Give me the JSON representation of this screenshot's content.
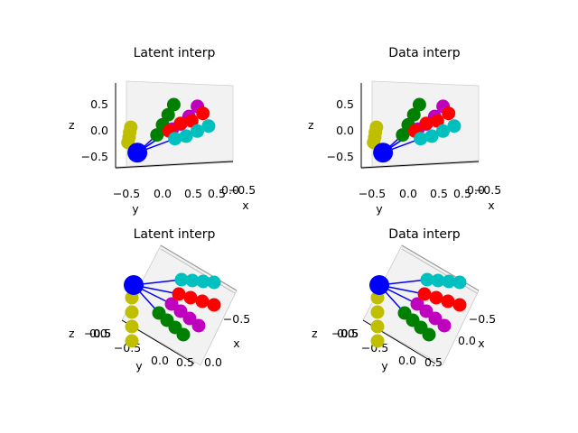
{
  "chart_data": [
    {
      "type": "scatter3d",
      "title": "Latent interp",
      "view": "side",
      "ticks": {
        "z": [
          "0.5",
          "0.0",
          "−0.5"
        ],
        "y": [
          "−0.5",
          "0.0",
          "0.5"
        ],
        "x": [
          "0.5",
          "0.0",
          "−0.5"
        ]
      },
      "axis_labels": {
        "x": "x",
        "y": "y",
        "z": "z"
      },
      "series": [
        {
          "color": "#bfbf00",
          "points": [
            [
              -0.9,
              -0.35,
              0.1
            ],
            [
              -0.9,
              -0.37,
              0.0
            ],
            [
              -0.9,
              -0.38,
              -0.1
            ],
            [
              -0.9,
              -0.4,
              -0.2
            ]
          ]
        },
        {
          "color": "#008000",
          "points": [
            [
              0.0,
              -0.1,
              -0.1
            ],
            [
              0.0,
              0.0,
              0.1
            ],
            [
              0.0,
              0.1,
              0.3
            ],
            [
              0.0,
              0.2,
              0.5
            ]
          ]
        },
        {
          "color": "#bf00bf",
          "points": [
            [
              0.3,
              0.1,
              0.0
            ],
            [
              0.3,
              0.25,
              0.1
            ],
            [
              0.3,
              0.4,
              0.25
            ],
            [
              0.3,
              0.55,
              0.45
            ]
          ]
        },
        {
          "color": "#ff0000",
          "points": [
            [
              0.5,
              0.0,
              -0.05
            ],
            [
              0.5,
              0.2,
              0.1
            ],
            [
              0.5,
              0.4,
              0.15
            ],
            [
              0.5,
              0.6,
              0.3
            ]
          ]
        },
        {
          "color": "#00bfbf",
          "points": [
            [
              0.5,
              0.1,
              -0.2
            ],
            [
              0.5,
              0.3,
              -0.15
            ],
            [
              0.5,
              0.5,
              -0.05
            ],
            [
              0.5,
              0.7,
              0.05
            ]
          ]
        },
        {
          "color": "#0000ff",
          "points": [
            [
              0.0,
              -0.45,
              -0.45
            ]
          ]
        }
      ]
    },
    {
      "type": "scatter3d",
      "title": "Data interp",
      "view": "side",
      "ticks": {
        "z": [
          "0.5",
          "0.0",
          "−0.5"
        ],
        "y": [
          "−0.5",
          "0.0",
          "0.5"
        ],
        "x": [
          "0.5",
          "0.0",
          "−0.5"
        ]
      },
      "axis_labels": {
        "x": "x",
        "y": "y",
        "z": "z"
      },
      "series": [
        {
          "color": "#bfbf00",
          "points": [
            [
              -0.9,
              -0.35,
              0.1
            ],
            [
              -0.9,
              -0.37,
              0.0
            ],
            [
              -0.9,
              -0.38,
              -0.1
            ],
            [
              -0.9,
              -0.4,
              -0.2
            ]
          ]
        },
        {
          "color": "#008000",
          "points": [
            [
              0.0,
              -0.1,
              -0.1
            ],
            [
              0.0,
              0.0,
              0.1
            ],
            [
              0.0,
              0.1,
              0.3
            ],
            [
              0.0,
              0.2,
              0.5
            ]
          ]
        },
        {
          "color": "#bf00bf",
          "points": [
            [
              0.3,
              0.1,
              0.0
            ],
            [
              0.3,
              0.25,
              0.1
            ],
            [
              0.3,
              0.4,
              0.25
            ],
            [
              0.3,
              0.55,
              0.45
            ]
          ]
        },
        {
          "color": "#ff0000",
          "points": [
            [
              0.5,
              0.0,
              -0.05
            ],
            [
              0.5,
              0.2,
              0.1
            ],
            [
              0.5,
              0.4,
              0.15
            ],
            [
              0.5,
              0.6,
              0.3
            ]
          ]
        },
        {
          "color": "#00bfbf",
          "points": [
            [
              0.5,
              0.1,
              -0.2
            ],
            [
              0.5,
              0.3,
              -0.15
            ],
            [
              0.5,
              0.5,
              -0.05
            ],
            [
              0.5,
              0.7,
              0.05
            ]
          ]
        },
        {
          "color": "#0000ff",
          "points": [
            [
              0.0,
              -0.45,
              -0.45
            ]
          ]
        }
      ]
    },
    {
      "type": "scatter3d",
      "title": "Latent interp",
      "view": "top",
      "ticks": {
        "y": [
          "−0.5",
          "0.0",
          "0.5"
        ],
        "x": [
          "−0.5",
          "0.0"
        ],
        "z": [
          "0.5",
          "0.0",
          "−0.5"
        ]
      },
      "axis_labels": {
        "x": "x",
        "y": "y",
        "z": "z"
      },
      "series": [
        {
          "color": "#bfbf00",
          "points": [
            [
              0.0,
              -0.95,
              0.0
            ],
            [
              0.0,
              -0.95,
              0.0
            ],
            [
              0.0,
              -0.95,
              0.0
            ],
            [
              0.0,
              -0.95,
              0.0
            ]
          ]
        },
        {
          "color": "#008000",
          "points": [
            [
              0.0,
              -0.4,
              0.0
            ],
            [
              0.0,
              -0.2,
              0.0
            ],
            [
              0.0,
              0.0,
              0.0
            ],
            [
              0.0,
              0.2,
              0.0
            ]
          ]
        },
        {
          "color": "#bf00bf",
          "points": [
            [
              0.0,
              -0.3,
              0.0
            ],
            [
              0.0,
              0.0,
              0.0
            ],
            [
              0.0,
              0.2,
              0.0
            ],
            [
              0.0,
              0.5,
              0.0
            ]
          ]
        },
        {
          "color": "#ff0000",
          "points": [
            [
              0.0,
              0.0,
              0.0
            ],
            [
              0.0,
              0.3,
              0.0
            ],
            [
              0.0,
              0.5,
              0.0
            ],
            [
              0.0,
              0.7,
              0.0
            ]
          ]
        },
        {
          "color": "#00bfbf",
          "points": [
            [
              0.0,
              0.0,
              0.0
            ],
            [
              0.0,
              0.2,
              0.0
            ],
            [
              0.0,
              0.4,
              0.0
            ],
            [
              0.0,
              0.6,
              0.0
            ]
          ]
        },
        {
          "color": "#0000ff",
          "points": [
            [
              0.0,
              -0.95,
              0.0
            ]
          ]
        }
      ]
    },
    {
      "type": "scatter3d",
      "title": "Data interp",
      "view": "top",
      "ticks": {
        "y": [
          "−0.5",
          "0.0",
          "0.5"
        ],
        "x": [
          "−0.5",
          "0.0"
        ],
        "z": [
          "0.5",
          "0.0",
          "−0.5"
        ]
      },
      "axis_labels": {
        "x": "x",
        "y": "y",
        "z": "z"
      },
      "series": [
        {
          "color": "#bfbf00",
          "points": [
            [
              0.0,
              -0.95,
              0.0
            ],
            [
              0.0,
              -0.95,
              0.0
            ],
            [
              0.0,
              -0.95,
              0.0
            ],
            [
              0.0,
              -0.95,
              0.0
            ]
          ]
        },
        {
          "color": "#008000",
          "points": [
            [
              0.0,
              -0.4,
              0.0
            ],
            [
              0.0,
              -0.2,
              0.0
            ],
            [
              0.0,
              0.0,
              0.0
            ],
            [
              0.0,
              0.2,
              0.0
            ]
          ]
        },
        {
          "color": "#bf00bf",
          "points": [
            [
              0.0,
              -0.3,
              0.0
            ],
            [
              0.0,
              0.0,
              0.0
            ],
            [
              0.0,
              0.2,
              0.0
            ],
            [
              0.0,
              0.5,
              0.0
            ]
          ]
        },
        {
          "color": "#ff0000",
          "points": [
            [
              0.0,
              0.0,
              0.0
            ],
            [
              0.0,
              0.3,
              0.0
            ],
            [
              0.0,
              0.5,
              0.0
            ],
            [
              0.0,
              0.7,
              0.0
            ]
          ]
        },
        {
          "color": "#00bfbf",
          "points": [
            [
              0.0,
              0.0,
              0.0
            ],
            [
              0.0,
              0.2,
              0.0
            ],
            [
              0.0,
              0.4,
              0.0
            ],
            [
              0.0,
              0.6,
              0.0
            ]
          ]
        },
        {
          "color": "#0000ff",
          "points": [
            [
              0.0,
              -0.95,
              0.0
            ]
          ]
        }
      ]
    }
  ]
}
